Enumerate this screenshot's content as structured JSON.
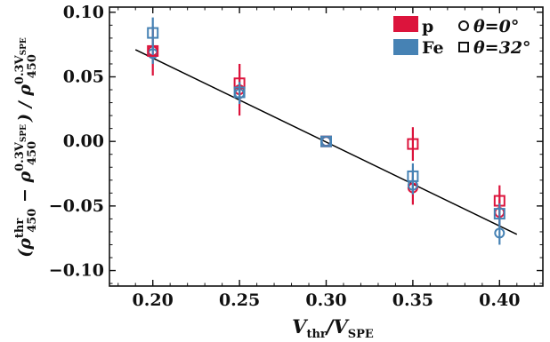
{
  "chart_data": {
    "type": "scatter",
    "xlabel": "V_thr/V_SPE",
    "ylabel": "(ρ_450^thr − ρ_450^0.3V_SPE) / ρ_450^0.3V_SPE",
    "xlabel_parts": {
      "main": "V",
      "sub1": "thr",
      "mid": "/V",
      "sub2": "SPE"
    },
    "ylabel_parts": {
      "open": "(ρ",
      "sup1": "thr",
      "sub1": "450",
      "minus": " − ρ",
      "sup2": "0.3V",
      "sup2sub": "SPE",
      "sub2": "450",
      "close": ") / ρ",
      "sup3": "0.3V",
      "sup3sub": "SPE",
      "sub3": "450"
    },
    "xlim": [
      0.175,
      0.425
    ],
    "ylim": [
      -0.112,
      0.104
    ],
    "x_ticks": [
      0.2,
      0.25,
      0.3,
      0.35,
      0.4
    ],
    "x_tick_labels": [
      "0.20",
      "0.25",
      "0.30",
      "0.35",
      "0.40"
    ],
    "y_ticks": [
      0.1,
      0.05,
      0.0,
      -0.05,
      -0.1
    ],
    "y_tick_labels": [
      "0.10",
      "0.05",
      "0.00",
      "−0.05",
      "−0.10"
    ],
    "grid": false,
    "legend": [
      {
        "label": "p",
        "type": "color",
        "color": "#dc143c"
      },
      {
        "label": "Fe",
        "type": "color",
        "color": "#4682b4"
      },
      {
        "label": "θ=0°",
        "type": "marker",
        "marker": "circle"
      },
      {
        "label": "θ=32°",
        "type": "marker",
        "marker": "square"
      }
    ],
    "legend_position": "top-right",
    "series": [
      {
        "name": "p, θ=0°",
        "color": "#dc143c",
        "marker": "circle",
        "points": [
          {
            "x": 0.2,
            "y": 0.07,
            "err": 0.019
          },
          {
            "x": 0.25,
            "y": 0.04,
            "err": 0.02
          },
          {
            "x": 0.3,
            "y": 0.0,
            "err": 0.0
          },
          {
            "x": 0.35,
            "y": -0.036,
            "err": 0.013
          },
          {
            "x": 0.4,
            "y": -0.055,
            "err": 0.01
          }
        ]
      },
      {
        "name": "Fe, θ=0°",
        "color": "#4682b4",
        "marker": "circle",
        "points": [
          {
            "x": 0.2,
            "y": 0.068,
            "err": 0.008
          },
          {
            "x": 0.25,
            "y": 0.037,
            "err": 0.008
          },
          {
            "x": 0.3,
            "y": 0.0,
            "err": 0.0
          },
          {
            "x": 0.35,
            "y": -0.034,
            "err": 0.007
          },
          {
            "x": 0.4,
            "y": -0.071,
            "err": 0.009
          }
        ]
      },
      {
        "name": "p, θ=32°",
        "color": "#dc143c",
        "marker": "square",
        "points": [
          {
            "x": 0.2,
            "y": 0.07,
            "err": 0.0
          },
          {
            "x": 0.25,
            "y": 0.045,
            "err": 0.015
          },
          {
            "x": 0.3,
            "y": 0.0,
            "err": 0.0
          },
          {
            "x": 0.35,
            "y": -0.002,
            "err": 0.013
          },
          {
            "x": 0.4,
            "y": -0.046,
            "err": 0.012
          }
        ]
      },
      {
        "name": "Fe, θ=32°",
        "color": "#4682b4",
        "marker": "square",
        "points": [
          {
            "x": 0.2,
            "y": 0.084,
            "err": 0.012
          },
          {
            "x": 0.25,
            "y": 0.038,
            "err": 0.008
          },
          {
            "x": 0.3,
            "y": 0.0,
            "err": 0.0
          },
          {
            "x": 0.35,
            "y": -0.027,
            "err": 0.01
          },
          {
            "x": 0.4,
            "y": -0.056,
            "err": 0.008
          }
        ]
      }
    ],
    "fit_line": {
      "color": "#000000",
      "x": [
        0.19,
        0.41
      ],
      "y": [
        0.071,
        -0.072
      ]
    }
  }
}
